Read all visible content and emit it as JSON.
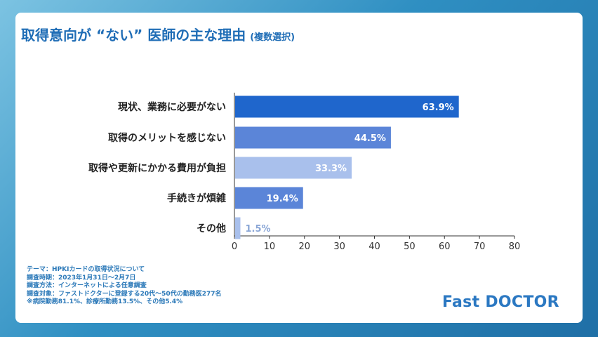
{
  "title": {
    "main": "取得意向が “ない” 医師の主な理由",
    "sub": "(複数選択)"
  },
  "chart_data": {
    "type": "bar",
    "orientation": "horizontal",
    "categories": [
      "現状、業務に必要がない",
      "取得のメリットを感じない",
      "取得や更新にかかる費用が負担",
      "手続きが煩雑",
      "その他"
    ],
    "values": [
      63.9,
      44.5,
      33.3,
      19.4,
      1.5
    ],
    "value_labels": [
      "63.9%",
      "44.5%",
      "33.3%",
      "19.4%",
      "1.5%"
    ],
    "bar_colors": [
      "#1f66cc",
      "#5b85d8",
      "#a9c0ec",
      "#5b85d8",
      "#a9c0ec"
    ],
    "xlim": [
      0,
      80
    ],
    "xticks": [
      "0",
      "10",
      "20",
      "30",
      "40",
      "50",
      "60",
      "70",
      "80"
    ],
    "grid": false
  },
  "notes": [
    "テーマ：HPKIカードの取得状況について",
    "調査時期：2023年1月31日〜2月7日",
    "調査方法：インターネットによる任意調査",
    "調査対象：ファストドクターに登録する20代〜50代の勤務医277名",
    "※病院勤務81.1%、診療所勤務13.5%、その他5.4%"
  ],
  "logo": "Fast DOCTOR"
}
